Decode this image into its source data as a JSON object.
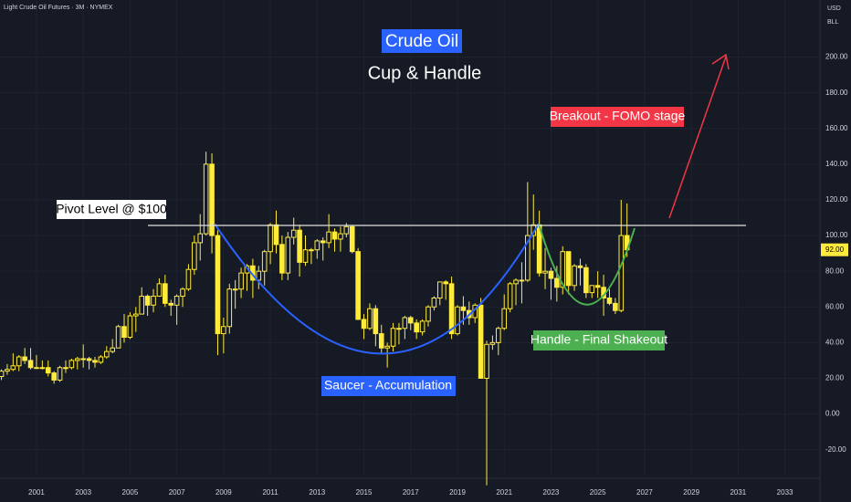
{
  "chart_data": {
    "type": "candlestick",
    "symbol": "Light Crude Oil Futures · 3M · NYMEX",
    "title": "Crude Oil",
    "subtitle": "Cup & Handle",
    "currency": "USD",
    "unit": "BLL",
    "annotations": {
      "pivot": "Pivot Level @ $100",
      "breakout": "Breakout - FOMO stage",
      "saucer": "Saucer - Accumulation",
      "handle": "Handle - Final Shakeout"
    },
    "last_price": {
      "value": 92,
      "label": "92.00"
    },
    "color": "#ffeb3b",
    "x": [
      1999.5,
      1999.75,
      2000,
      2000.25,
      2000.5,
      2000.75,
      2001,
      2001.25,
      2001.5,
      2001.75,
      2002,
      2002.25,
      2002.5,
      2002.75,
      2003,
      2003.25,
      2003.5,
      2003.75,
      2004,
      2004.25,
      2004.5,
      2004.75,
      2005,
      2005.25,
      2005.5,
      2005.75,
      2006,
      2006.25,
      2006.5,
      2006.75,
      2007,
      2007.25,
      2007.5,
      2007.75,
      2008,
      2008.25,
      2008.5,
      2008.75,
      2009,
      2009.25,
      2009.5,
      2009.75,
      2010,
      2010.25,
      2010.5,
      2010.75,
      2011,
      2011.25,
      2011.5,
      2011.75,
      2012,
      2012.25,
      2012.5,
      2012.75,
      2013,
      2013.25,
      2013.5,
      2013.75,
      2014,
      2014.25,
      2014.5,
      2014.75,
      2015,
      2015.25,
      2015.5,
      2015.75,
      2016,
      2016.25,
      2016.5,
      2016.75,
      2017,
      2017.25,
      2017.5,
      2017.75,
      2018,
      2018.25,
      2018.5,
      2018.75,
      2019,
      2019.25,
      2019.5,
      2019.75,
      2020,
      2020.25,
      2020.5,
      2020.75,
      2021,
      2021.25,
      2021.5,
      2021.75,
      2022,
      2022.25,
      2022.5,
      2022.75,
      2023,
      2023.25,
      2023.5,
      2023.75,
      2024,
      2024.25,
      2024.5,
      2024.75,
      2025,
      2025.25,
      2025.5,
      2025.75,
      2026,
      2026.25
    ],
    "open": [
      21,
      24,
      25,
      27,
      32,
      30,
      26,
      26,
      26,
      23,
      19,
      26,
      26,
      30,
      31,
      31,
      30,
      29,
      32,
      35,
      37,
      49,
      43,
      55,
      56,
      66,
      61,
      66,
      73,
      62,
      61,
      66,
      70,
      81,
      96,
      101,
      140,
      100,
      45,
      49,
      70,
      70,
      79,
      83,
      75,
      80,
      91,
      106,
      95,
      79,
      99,
      103,
      85,
      92,
      92,
      97,
      96,
      102,
      98,
      101,
      105,
      91,
      53,
      48,
      59,
      45,
      37,
      38,
      48,
      48,
      54,
      51,
      46,
      52,
      60,
      65,
      74,
      73,
      45,
      60,
      58,
      54,
      61,
      20,
      39,
      40,
      48,
      59,
      73,
      75,
      75,
      100,
      106,
      79,
      80,
      76,
      71,
      91,
      72,
      83,
      82,
      68,
      72,
      71,
      65,
      62,
      58,
      100
    ],
    "high": [
      25,
      28,
      34,
      33,
      37,
      37,
      33,
      30,
      30,
      24,
      27,
      30,
      31,
      32,
      39,
      32,
      32,
      33,
      38,
      42,
      50,
      56,
      57,
      60,
      71,
      67,
      70,
      76,
      78,
      64,
      67,
      71,
      84,
      100,
      112,
      147,
      146,
      103,
      54,
      73,
      75,
      82,
      84,
      87,
      83,
      92,
      107,
      114,
      100,
      102,
      110,
      106,
      100,
      93,
      98,
      99,
      112,
      104,
      105,
      107,
      106,
      93,
      56,
      62,
      61,
      50,
      40,
      51,
      51,
      55,
      55,
      53,
      53,
      61,
      66,
      73,
      75,
      77,
      61,
      66,
      63,
      62,
      65,
      41,
      44,
      49,
      67,
      74,
      76,
      85,
      130,
      123,
      114,
      93,
      82,
      83,
      94,
      91,
      84,
      87,
      84,
      72,
      80,
      78,
      70,
      65,
      120,
      118
    ],
    "low": [
      19,
      22,
      24,
      24,
      28,
      25,
      26,
      25,
      21,
      17,
      18,
      23,
      25,
      25,
      26,
      25,
      26,
      28,
      31,
      34,
      37,
      40,
      42,
      46,
      56,
      55,
      57,
      66,
      60,
      55,
      50,
      60,
      69,
      78,
      86,
      100,
      90,
      33,
      34,
      45,
      59,
      65,
      69,
      65,
      70,
      72,
      84,
      90,
      75,
      75,
      95,
      77,
      83,
      84,
      87,
      86,
      93,
      91,
      91,
      99,
      90,
      53,
      42,
      47,
      38,
      34,
      26,
      35,
      39,
      42,
      47,
      42,
      44,
      49,
      58,
      61,
      64,
      42,
      44,
      50,
      50,
      51,
      20,
      -40,
      36,
      33,
      47,
      57,
      61,
      62,
      74,
      92,
      77,
      70,
      64,
      63,
      67,
      67,
      69,
      72,
      65,
      65,
      65,
      55,
      61,
      56,
      57,
      88
    ],
    "close": [
      24,
      25,
      27,
      32,
      30,
      26,
      26,
      26,
      23,
      19,
      26,
      26,
      30,
      31,
      31,
      30,
      29,
      32,
      35,
      37,
      49,
      43,
      55,
      56,
      66,
      61,
      66,
      73,
      62,
      61,
      66,
      70,
      81,
      96,
      101,
      140,
      100,
      45,
      49,
      70,
      70,
      79,
      83,
      75,
      80,
      91,
      106,
      95,
      79,
      99,
      103,
      85,
      92,
      92,
      97,
      96,
      102,
      98,
      101,
      105,
      91,
      53,
      48,
      59,
      45,
      37,
      38,
      48,
      48,
      54,
      51,
      46,
      52,
      60,
      65,
      74,
      73,
      45,
      60,
      58,
      54,
      61,
      20,
      39,
      40,
      48,
      59,
      73,
      75,
      75,
      100,
      106,
      79,
      80,
      76,
      71,
      91,
      72,
      83,
      82,
      68,
      72,
      71,
      65,
      62,
      58,
      100,
      92
    ],
    "xlim": [
      1999.44,
      2034.5
    ],
    "xticks": [
      2001,
      2003,
      2005,
      2007,
      2009,
      2011,
      2013,
      2015,
      2017,
      2019,
      2021,
      2023,
      2025,
      2027,
      2029,
      2031,
      2033
    ],
    "ylim": [
      -35,
      232
    ],
    "yticks": [
      {
        "value": -20,
        "label": "-20.00"
      },
      {
        "value": 0,
        "label": "0.00"
      },
      {
        "value": 20,
        "label": "20.00"
      },
      {
        "value": 40,
        "label": "40.00"
      },
      {
        "value": 60,
        "label": "60.00"
      },
      {
        "value": 80,
        "label": "80.00"
      },
      {
        "value": 100,
        "label": "100.00"
      },
      {
        "value": 120,
        "label": "120.00"
      },
      {
        "value": 140,
        "label": "140.00"
      },
      {
        "value": 160,
        "label": "160.00"
      },
      {
        "value": 180,
        "label": "180.00"
      },
      {
        "value": 200,
        "label": "200.00"
      }
    ],
    "grid": true
  }
}
